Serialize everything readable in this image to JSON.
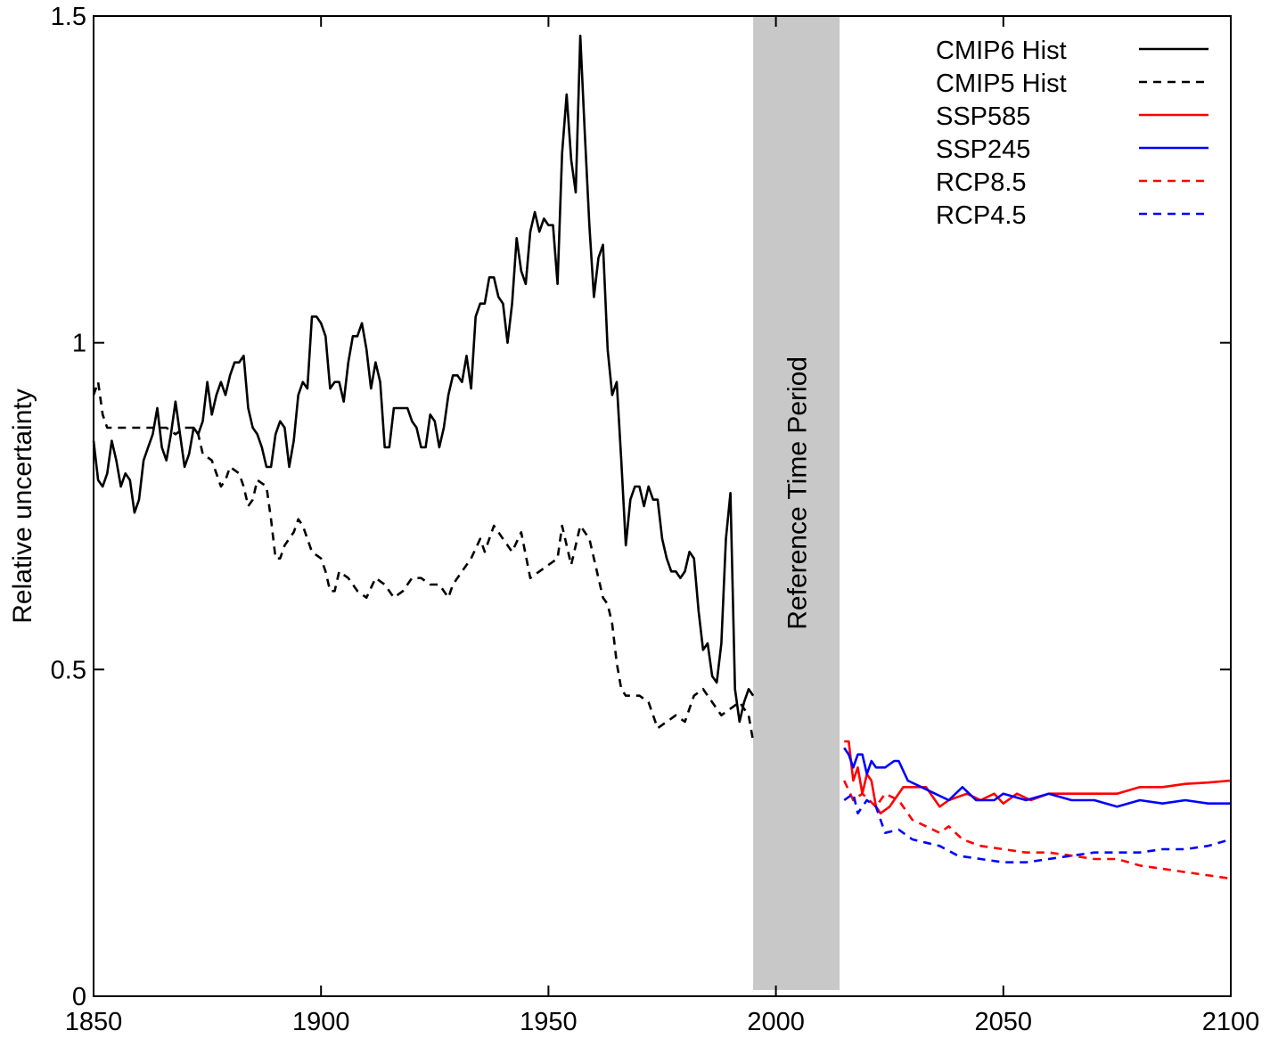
{
  "chart_data": {
    "type": "line",
    "title": "",
    "xlabel": "",
    "ylabel": "Relative uncertainty",
    "xlim": [
      1850,
      2100
    ],
    "ylim": [
      0,
      1.5
    ],
    "xticks": [
      1850,
      1900,
      1950,
      2000,
      2050,
      2100
    ],
    "xtick_labels": [
      "1850",
      "1900",
      "1950",
      "2000",
      "2050",
      "2100"
    ],
    "yticks": [
      0,
      0.5,
      1,
      1.5
    ],
    "ytick_labels": [
      "0",
      "0.5",
      "1",
      "1.5"
    ],
    "grid": false,
    "legend_position": "top-right",
    "shaded_region": {
      "label": "Reference Time Period",
      "x": [
        1995,
        2014
      ],
      "color": "#c8c8c8"
    },
    "series": [
      {
        "name": "CMIP6 Hist",
        "color": "#000000",
        "dash": false,
        "x": [
          1850,
          1851,
          1852,
          1853,
          1854,
          1855,
          1856,
          1857,
          1858,
          1859,
          1860,
          1861,
          1862,
          1863,
          1864,
          1865,
          1866,
          1867,
          1868,
          1869,
          1870,
          1871,
          1872,
          1873,
          1874,
          1875,
          1876,
          1877,
          1878,
          1879,
          1880,
          1881,
          1882,
          1883,
          1884,
          1885,
          1886,
          1887,
          1888,
          1889,
          1890,
          1891,
          1892,
          1893,
          1894,
          1895,
          1896,
          1897,
          1898,
          1899,
          1900,
          1901,
          1902,
          1903,
          1904,
          1905,
          1906,
          1907,
          1908,
          1909,
          1910,
          1911,
          1912,
          1913,
          1914,
          1915,
          1916,
          1917,
          1918,
          1919,
          1920,
          1921,
          1922,
          1923,
          1924,
          1925,
          1926,
          1927,
          1928,
          1929,
          1930,
          1931,
          1932,
          1933,
          1934,
          1935,
          1936,
          1937,
          1938,
          1939,
          1940,
          1941,
          1942,
          1943,
          1944,
          1945,
          1946,
          1947,
          1948,
          1949,
          1950,
          1951,
          1952,
          1953,
          1954,
          1955,
          1956,
          1957,
          1958,
          1959,
          1960,
          1961,
          1962,
          1963,
          1964,
          1965,
          1966,
          1967,
          1968,
          1969,
          1970,
          1971,
          1972,
          1973,
          1974,
          1975,
          1976,
          1977,
          1978,
          1979,
          1980,
          1981,
          1982,
          1983,
          1984,
          1985,
          1986,
          1987,
          1988,
          1989,
          1990,
          1991,
          1992,
          1993,
          1994,
          1995
        ],
        "y": [
          0.85,
          0.79,
          0.78,
          0.8,
          0.85,
          0.82,
          0.78,
          0.8,
          0.79,
          0.74,
          0.76,
          0.82,
          0.84,
          0.86,
          0.9,
          0.84,
          0.82,
          0.86,
          0.91,
          0.86,
          0.81,
          0.83,
          0.87,
          0.86,
          0.88,
          0.94,
          0.89,
          0.92,
          0.94,
          0.92,
          0.95,
          0.97,
          0.97,
          0.98,
          0.9,
          0.87,
          0.86,
          0.84,
          0.81,
          0.81,
          0.86,
          0.88,
          0.87,
          0.81,
          0.85,
          0.92,
          0.94,
          0.93,
          1.04,
          1.04,
          1.03,
          1.01,
          0.93,
          0.94,
          0.94,
          0.91,
          0.97,
          1.01,
          1.01,
          1.03,
          0.99,
          0.93,
          0.97,
          0.94,
          0.84,
          0.84,
          0.9,
          0.9,
          0.9,
          0.9,
          0.88,
          0.87,
          0.84,
          0.84,
          0.89,
          0.88,
          0.84,
          0.87,
          0.92,
          0.95,
          0.95,
          0.94,
          0.98,
          0.93,
          1.04,
          1.06,
          1.06,
          1.1,
          1.1,
          1.07,
          1.06,
          1.0,
          1.06,
          1.16,
          1.11,
          1.09,
          1.17,
          1.2,
          1.17,
          1.19,
          1.18,
          1.18,
          1.09,
          1.29,
          1.38,
          1.28,
          1.23,
          1.47,
          1.32,
          1.18,
          1.07,
          1.13,
          1.15,
          0.99,
          0.92,
          0.94,
          0.82,
          0.69,
          0.76,
          0.78,
          0.78,
          0.75,
          0.78,
          0.76,
          0.76,
          0.7,
          0.67,
          0.65,
          0.65,
          0.64,
          0.65,
          0.68,
          0.67,
          0.59,
          0.53,
          0.54,
          0.49,
          0.48,
          0.54,
          0.7,
          0.77,
          0.47,
          0.42,
          0.45,
          0.47,
          0.46
        ]
      },
      {
        "name": "CMIP5 Hist",
        "color": "#000000",
        "dash": true,
        "x": [
          1850,
          1851,
          1852,
          1853,
          1854,
          1856,
          1858,
          1860,
          1862,
          1864,
          1866,
          1868,
          1870,
          1872,
          1873,
          1874,
          1876,
          1877,
          1878,
          1879,
          1880,
          1882,
          1883,
          1884,
          1885,
          1886,
          1888,
          1889,
          1890,
          1891,
          1892,
          1893,
          1894,
          1895,
          1896,
          1897,
          1898,
          1900,
          1901,
          1902,
          1903,
          1904,
          1906,
          1908,
          1910,
          1912,
          1914,
          1916,
          1918,
          1920,
          1922,
          1924,
          1926,
          1928,
          1929,
          1931,
          1933,
          1935,
          1936,
          1938,
          1940,
          1942,
          1944,
          1946,
          1948,
          1950,
          1952,
          1953,
          1955,
          1957,
          1959,
          1961,
          1962,
          1963,
          1964,
          1965,
          1966,
          1967,
          1968,
          1970,
          1972,
          1974,
          1976,
          1978,
          1980,
          1982,
          1984,
          1986,
          1988,
          1990,
          1992,
          1994,
          1995
        ],
        "y": [
          0.92,
          0.94,
          0.89,
          0.87,
          0.87,
          0.87,
          0.87,
          0.87,
          0.87,
          0.87,
          0.87,
          0.86,
          0.87,
          0.87,
          0.86,
          0.83,
          0.82,
          0.8,
          0.78,
          0.79,
          0.81,
          0.8,
          0.78,
          0.75,
          0.76,
          0.79,
          0.78,
          0.73,
          0.67,
          0.67,
          0.69,
          0.7,
          0.71,
          0.73,
          0.72,
          0.7,
          0.68,
          0.67,
          0.65,
          0.62,
          0.62,
          0.65,
          0.64,
          0.62,
          0.61,
          0.64,
          0.63,
          0.61,
          0.62,
          0.64,
          0.64,
          0.63,
          0.63,
          0.61,
          0.63,
          0.65,
          0.67,
          0.7,
          0.68,
          0.72,
          0.7,
          0.68,
          0.71,
          0.64,
          0.65,
          0.66,
          0.67,
          0.72,
          0.66,
          0.72,
          0.7,
          0.64,
          0.61,
          0.6,
          0.57,
          0.51,
          0.47,
          0.46,
          0.46,
          0.46,
          0.45,
          0.41,
          0.42,
          0.43,
          0.42,
          0.46,
          0.47,
          0.45,
          0.43,
          0.44,
          0.45,
          0.43,
          0.39
        ]
      },
      {
        "name": "SSP585",
        "color": "#ff0000",
        "dash": false,
        "x": [
          2015,
          2016,
          2017,
          2018,
          2019,
          2020,
          2021,
          2022,
          2023,
          2025,
          2028,
          2031,
          2033,
          2036,
          2038,
          2042,
          2045,
          2048,
          2050,
          2053,
          2056,
          2060,
          2065,
          2070,
          2075,
          2080,
          2085,
          2090,
          2095,
          2100
        ],
        "y": [
          0.39,
          0.39,
          0.33,
          0.35,
          0.31,
          0.34,
          0.33,
          0.29,
          0.28,
          0.29,
          0.32,
          0.32,
          0.32,
          0.29,
          0.3,
          0.31,
          0.3,
          0.31,
          0.295,
          0.31,
          0.3,
          0.31,
          0.31,
          0.31,
          0.31,
          0.32,
          0.32,
          0.325,
          0.327,
          0.33
        ]
      },
      {
        "name": "SSP245",
        "color": "#0000ff",
        "dash": false,
        "x": [
          2015,
          2016,
          2017,
          2018,
          2019,
          2020,
          2021,
          2022,
          2024,
          2026,
          2027,
          2029,
          2032,
          2035,
          2038,
          2041,
          2044,
          2048,
          2050,
          2055,
          2060,
          2065,
          2070,
          2075,
          2080,
          2085,
          2090,
          2095,
          2100
        ],
        "y": [
          0.38,
          0.37,
          0.35,
          0.37,
          0.37,
          0.34,
          0.36,
          0.35,
          0.35,
          0.36,
          0.36,
          0.33,
          0.32,
          0.31,
          0.3,
          0.32,
          0.3,
          0.3,
          0.31,
          0.3,
          0.31,
          0.3,
          0.3,
          0.29,
          0.3,
          0.295,
          0.3,
          0.295,
          0.295
        ]
      },
      {
        "name": "RCP8.5",
        "color": "#ff0000",
        "dash": true,
        "x": [
          2015,
          2017,
          2019,
          2022,
          2024,
          2027,
          2030,
          2033,
          2036,
          2038,
          2041,
          2045,
          2050,
          2055,
          2060,
          2065,
          2070,
          2075,
          2080,
          2085,
          2090,
          2095,
          2100
        ],
        "y": [
          0.33,
          0.3,
          0.31,
          0.29,
          0.31,
          0.3,
          0.27,
          0.26,
          0.25,
          0.26,
          0.24,
          0.23,
          0.225,
          0.22,
          0.22,
          0.215,
          0.21,
          0.21,
          0.2,
          0.195,
          0.19,
          0.185,
          0.18
        ]
      },
      {
        "name": "RCP4.5",
        "color": "#0000ff",
        "dash": true,
        "x": [
          2015,
          2017,
          2018,
          2020,
          2022,
          2024,
          2027,
          2030,
          2033,
          2036,
          2040,
          2045,
          2050,
          2055,
          2060,
          2065,
          2070,
          2075,
          2080,
          2085,
          2090,
          2095,
          2100
        ],
        "y": [
          0.3,
          0.31,
          0.28,
          0.3,
          0.29,
          0.25,
          0.255,
          0.24,
          0.235,
          0.23,
          0.215,
          0.21,
          0.205,
          0.205,
          0.21,
          0.215,
          0.22,
          0.22,
          0.22,
          0.225,
          0.225,
          0.23,
          0.24
        ]
      }
    ]
  }
}
